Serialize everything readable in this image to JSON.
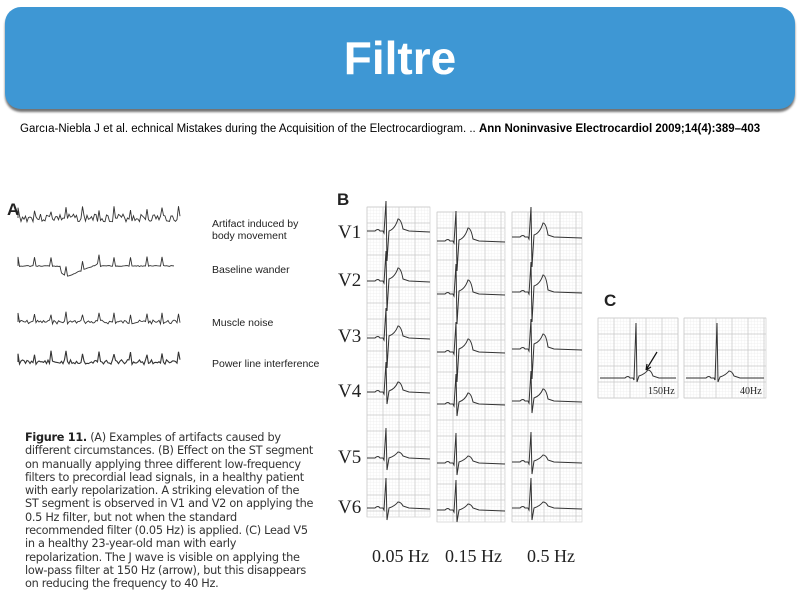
{
  "slide": {
    "title": "Filtre",
    "citation_plain": "Garcıa-Niebla J et al. echnical Mistakes during the Acquisition of the Electrocardiogram. .. ",
    "citation_bold": "Ann Noninvasive Electrocardiol 2009;14(4):389–403"
  },
  "figure": {
    "panel_a": {
      "letter": "A",
      "labels": [
        "Artifact induced by body movement",
        "Baseline wander",
        "Muscle noise",
        "Power line interference"
      ]
    },
    "panel_b": {
      "letter": "B",
      "leads": [
        "V1",
        "V2",
        "V3",
        "V4",
        "V5",
        "V6"
      ],
      "filters": [
        "0.05 Hz",
        "0.15 Hz",
        "0.5 Hz"
      ]
    },
    "panel_c": {
      "letter": "C",
      "filters": [
        "150Hz",
        "40Hz"
      ]
    },
    "caption": {
      "heading": "Figure 11.",
      "text": "(A) Examples of artifacts caused by different circumstances. (B) Effect on the ST segment on manually applying three different low-frequency filters to precordial lead signals, in a healthy patient with early repolarization. A striking elevation of the ST segment is observed in V1 and V2 on applying the 0.5 Hz filter, but not when the standard recommended filter (0.05 Hz) is applied. (C) Lead V5 in a healthy 23-year-old man with early repolarization. The J wave is visible on applying the low-pass filter at 150 Hz (arrow), but this disappears on reducing the frequency to 40 Hz."
    }
  },
  "colors": {
    "banner": "#3E97D4",
    "title_text": "#FFFFFF",
    "grid": "#C8C8C8",
    "trace": "#333333"
  }
}
